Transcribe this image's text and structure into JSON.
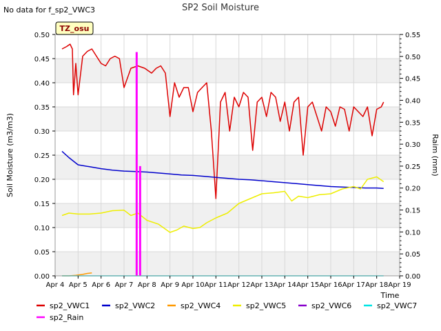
{
  "chart_data": {
    "type": "line",
    "title": "SP2 Soil Moisture",
    "note": "No data for f_sp2_VWC3",
    "station_label": "TZ_osu",
    "ylabel": "Soil Moisture (m3/m3)",
    "y2label": "Raim (mm)",
    "xlabel": "Time",
    "ylim": [
      0,
      0.5
    ],
    "y2lim": [
      0,
      0.55
    ],
    "xlim": [
      4,
      19
    ],
    "yticks": [
      "0.00",
      "0.05",
      "0.10",
      "0.15",
      "0.20",
      "0.25",
      "0.30",
      "0.35",
      "0.40",
      "0.45",
      "0.50"
    ],
    "y2ticks": [
      "0.00",
      "0.05",
      "0.10",
      "0.15",
      "0.20",
      "0.25",
      "0.30",
      "0.35",
      "0.40",
      "0.45",
      "0.50",
      "0.55"
    ],
    "xticks": [
      "Apr 4",
      "Apr 5",
      "Apr 6",
      "Apr 7",
      "Apr 8",
      "Apr 9",
      "Apr 10",
      "Apr 11",
      "Apr 12",
      "Apr 13",
      "Apr 14",
      "Apr 15",
      "Apr 16",
      "Apr 17",
      "Apr 18",
      "Apr 19"
    ],
    "grid": true,
    "legend_placement": "bottom",
    "series": [
      {
        "name": "sp2_VWC1",
        "color": "#dd0000",
        "axis": "left",
        "x": [
          4.3,
          4.5,
          4.65,
          4.75,
          4.8,
          4.9,
          5.0,
          5.2,
          5.4,
          5.6,
          5.8,
          6.0,
          6.2,
          6.4,
          6.6,
          6.8,
          7.0,
          7.3,
          7.6,
          7.9,
          8.2,
          8.4,
          8.6,
          8.8,
          9.0,
          9.2,
          9.4,
          9.6,
          9.8,
          10.0,
          10.2,
          10.4,
          10.6,
          10.8,
          11.0,
          11.2,
          11.4,
          11.6,
          11.8,
          12.0,
          12.2,
          12.4,
          12.6,
          12.8,
          13.0,
          13.2,
          13.4,
          13.6,
          13.8,
          14.0,
          14.2,
          14.4,
          14.6,
          14.8,
          15.0,
          15.2,
          15.4,
          15.6,
          15.8,
          16.0,
          16.2,
          16.4,
          16.6,
          16.8,
          17.0,
          17.2,
          17.4,
          17.6,
          17.8,
          18.0,
          18.2,
          18.3
        ],
        "y": [
          0.47,
          0.475,
          0.48,
          0.47,
          0.375,
          0.44,
          0.375,
          0.455,
          0.465,
          0.47,
          0.455,
          0.44,
          0.435,
          0.45,
          0.455,
          0.45,
          0.39,
          0.43,
          0.435,
          0.43,
          0.42,
          0.43,
          0.435,
          0.42,
          0.33,
          0.4,
          0.37,
          0.39,
          0.39,
          0.34,
          0.38,
          0.39,
          0.4,
          0.3,
          0.16,
          0.36,
          0.38,
          0.3,
          0.37,
          0.35,
          0.38,
          0.37,
          0.26,
          0.36,
          0.37,
          0.33,
          0.38,
          0.37,
          0.32,
          0.36,
          0.3,
          0.36,
          0.37,
          0.25,
          0.35,
          0.36,
          0.33,
          0.3,
          0.35,
          0.34,
          0.31,
          0.35,
          0.345,
          0.3,
          0.35,
          0.34,
          0.33,
          0.35,
          0.29,
          0.345,
          0.35,
          0.36
        ]
      },
      {
        "name": "sp2_VWC2",
        "color": "#0000cc",
        "axis": "left",
        "x": [
          4.3,
          4.6,
          5.0,
          5.5,
          6.0,
          6.5,
          7.0,
          7.5,
          8.0,
          8.5,
          9.0,
          9.5,
          10.0,
          10.5,
          11.0,
          11.5,
          12.0,
          12.5,
          13.0,
          13.5,
          14.0,
          14.5,
          15.0,
          15.5,
          16.0,
          16.5,
          17.0,
          17.5,
          18.0,
          18.3
        ],
        "y": [
          0.258,
          0.245,
          0.23,
          0.226,
          0.222,
          0.219,
          0.217,
          0.216,
          0.215,
          0.213,
          0.211,
          0.209,
          0.208,
          0.206,
          0.204,
          0.202,
          0.2,
          0.199,
          0.197,
          0.195,
          0.193,
          0.191,
          0.189,
          0.187,
          0.185,
          0.184,
          0.183,
          0.182,
          0.182,
          0.181
        ]
      },
      {
        "name": "sp2_VWC4",
        "color": "#ff9900",
        "axis": "left",
        "x": [
          4.3,
          4.6,
          4.9,
          5.2,
          5.4,
          5.6
        ],
        "y": [
          0.0,
          0.0,
          0.001,
          0.003,
          0.005,
          0.006
        ]
      },
      {
        "name": "sp2_VWC5",
        "color": "#eeee00",
        "axis": "left",
        "x": [
          4.3,
          4.6,
          5.0,
          5.5,
          6.0,
          6.5,
          7.0,
          7.3,
          7.6,
          8.0,
          8.5,
          9.0,
          9.3,
          9.6,
          10.0,
          10.3,
          10.6,
          11.0,
          11.5,
          12.0,
          12.5,
          13.0,
          13.5,
          14.0,
          14.3,
          14.6,
          15.0,
          15.5,
          16.0,
          16.5,
          17.0,
          17.3,
          17.6,
          18.0,
          18.3
        ],
        "y": [
          0.125,
          0.13,
          0.128,
          0.128,
          0.13,
          0.135,
          0.136,
          0.125,
          0.13,
          0.115,
          0.107,
          0.09,
          0.095,
          0.103,
          0.098,
          0.1,
          0.11,
          0.12,
          0.13,
          0.15,
          0.16,
          0.17,
          0.172,
          0.175,
          0.155,
          0.165,
          0.162,
          0.168,
          0.17,
          0.18,
          0.185,
          0.18,
          0.2,
          0.205,
          0.195
        ]
      },
      {
        "name": "sp2_VWC6",
        "color": "#8800cc",
        "axis": "left",
        "x": [],
        "y": []
      },
      {
        "name": "sp2_VWC7",
        "color": "#00e5e5",
        "axis": "left",
        "x": [
          4.3,
          18.3
        ],
        "y": [
          0.0,
          0.0
        ]
      },
      {
        "name": "sp2_Rain",
        "color": "#ff00ff",
        "axis": "right",
        "kind": "bars",
        "x": [
          7.55,
          7.7
        ],
        "y": [
          0.51,
          0.25
        ]
      }
    ]
  }
}
